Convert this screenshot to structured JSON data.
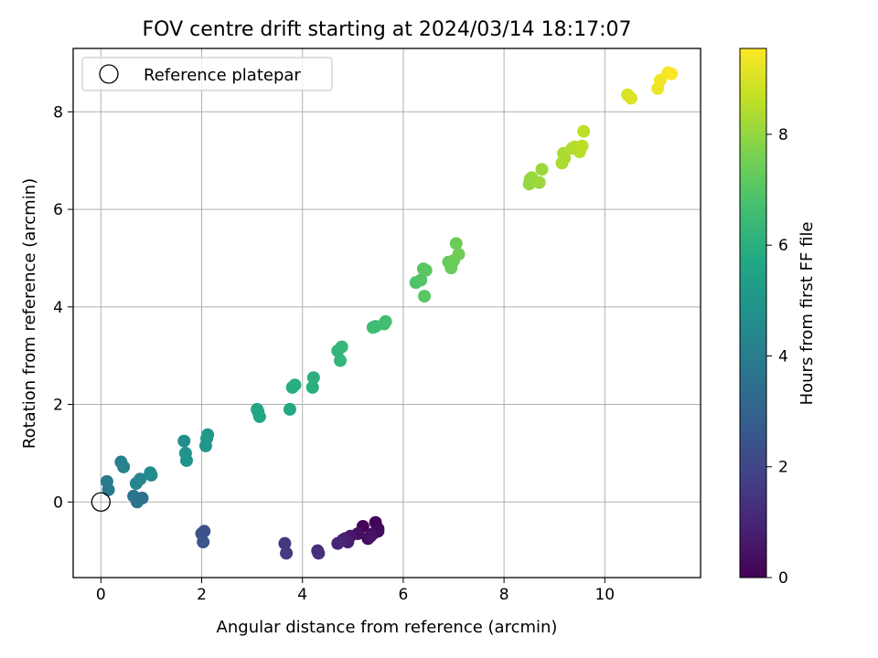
{
  "chart_data": {
    "type": "scatter",
    "title": "FOV centre drift starting at 2024/03/14 18:17:07",
    "xlabel": "Angular distance from reference (arcmin)",
    "ylabel": "Rotation from reference (arcmin)",
    "xlim": [
      -0.55,
      11.9
    ],
    "ylim": [
      -1.55,
      9.3
    ],
    "xticks": [
      0,
      2,
      4,
      6,
      8,
      10
    ],
    "yticks": [
      0,
      2,
      4,
      6,
      8
    ],
    "grid": true,
    "legend": {
      "placement": "top-left",
      "entries": [
        "Reference platepar"
      ]
    },
    "reference_point": {
      "x": 0,
      "y": 0,
      "marker": "open-circle",
      "label": "Reference platepar"
    },
    "colorbar": {
      "label": "Hours from first FF file",
      "colormap": "viridis",
      "range": [
        0,
        9.55
      ],
      "ticks": [
        0,
        2,
        4,
        6,
        8
      ]
    },
    "points": [
      {
        "x": 5.45,
        "y": -0.42,
        "h": 0.05
      },
      {
        "x": 5.5,
        "y": -0.55,
        "h": 0.1
      },
      {
        "x": 5.2,
        "y": -0.5,
        "h": 0.15
      },
      {
        "x": 5.4,
        "y": -0.65,
        "h": 0.2
      },
      {
        "x": 5.3,
        "y": -0.75,
        "h": 0.25
      },
      {
        "x": 5.5,
        "y": -0.6,
        "h": 0.3
      },
      {
        "x": 5.1,
        "y": -0.65,
        "h": 0.4
      },
      {
        "x": 5.35,
        "y": -0.7,
        "h": 0.5
      },
      {
        "x": 4.95,
        "y": -0.7,
        "h": 0.6
      },
      {
        "x": 4.85,
        "y": -0.75,
        "h": 0.7
      },
      {
        "x": 4.9,
        "y": -0.82,
        "h": 0.8
      },
      {
        "x": 4.8,
        "y": -0.78,
        "h": 0.9
      },
      {
        "x": 4.7,
        "y": -0.85,
        "h": 1.0
      },
      {
        "x": 4.3,
        "y": -1.0,
        "h": 1.2
      },
      {
        "x": 4.32,
        "y": -1.05,
        "h": 1.3
      },
      {
        "x": 3.65,
        "y": -0.85,
        "h": 1.5
      },
      {
        "x": 3.68,
        "y": -1.05,
        "h": 1.6
      },
      {
        "x": 2.0,
        "y": -0.65,
        "h": 2.3
      },
      {
        "x": 2.05,
        "y": -0.6,
        "h": 2.4
      },
      {
        "x": 2.03,
        "y": -0.82,
        "h": 2.5
      },
      {
        "x": 0.82,
        "y": 0.08,
        "h": 3.5
      },
      {
        "x": 0.72,
        "y": 0.0,
        "h": 3.6
      },
      {
        "x": 0.65,
        "y": 0.12,
        "h": 3.7
      },
      {
        "x": 0.15,
        "y": 0.25,
        "h": 3.9
      },
      {
        "x": 0.12,
        "y": 0.42,
        "h": 3.95
      },
      {
        "x": 0.4,
        "y": 0.82,
        "h": 4.1
      },
      {
        "x": 0.45,
        "y": 0.72,
        "h": 4.2
      },
      {
        "x": 0.7,
        "y": 0.38,
        "h": 4.3
      },
      {
        "x": 0.78,
        "y": 0.47,
        "h": 4.4
      },
      {
        "x": 0.98,
        "y": 0.6,
        "h": 4.5
      },
      {
        "x": 1.0,
        "y": 0.55,
        "h": 4.55
      },
      {
        "x": 1.65,
        "y": 1.25,
        "h": 4.7
      },
      {
        "x": 1.68,
        "y": 1.0,
        "h": 4.8
      },
      {
        "x": 1.7,
        "y": 0.85,
        "h": 4.9
      },
      {
        "x": 2.08,
        "y": 1.15,
        "h": 5.0
      },
      {
        "x": 2.1,
        "y": 1.3,
        "h": 5.05
      },
      {
        "x": 2.12,
        "y": 1.38,
        "h": 5.1
      },
      {
        "x": 3.1,
        "y": 1.9,
        "h": 5.6
      },
      {
        "x": 3.15,
        "y": 1.75,
        "h": 5.65
      },
      {
        "x": 3.12,
        "y": 1.85,
        "h": 5.7
      },
      {
        "x": 3.75,
        "y": 1.9,
        "h": 5.8
      },
      {
        "x": 3.8,
        "y": 2.35,
        "h": 5.9
      },
      {
        "x": 3.85,
        "y": 2.4,
        "h": 5.95
      },
      {
        "x": 4.2,
        "y": 2.35,
        "h": 6.0
      },
      {
        "x": 4.22,
        "y": 2.55,
        "h": 6.05
      },
      {
        "x": 4.7,
        "y": 3.1,
        "h": 6.2
      },
      {
        "x": 4.75,
        "y": 2.9,
        "h": 6.25
      },
      {
        "x": 4.78,
        "y": 3.18,
        "h": 6.3
      },
      {
        "x": 5.4,
        "y": 3.58,
        "h": 6.5
      },
      {
        "x": 5.45,
        "y": 3.6,
        "h": 6.55
      },
      {
        "x": 5.65,
        "y": 3.7,
        "h": 6.6
      },
      {
        "x": 5.62,
        "y": 3.65,
        "h": 6.62
      },
      {
        "x": 6.25,
        "y": 4.5,
        "h": 6.9
      },
      {
        "x": 6.35,
        "y": 4.55,
        "h": 6.95
      },
      {
        "x": 6.4,
        "y": 4.78,
        "h": 7.0
      },
      {
        "x": 6.42,
        "y": 4.22,
        "h": 7.05
      },
      {
        "x": 6.45,
        "y": 4.75,
        "h": 7.1
      },
      {
        "x": 6.9,
        "y": 4.92,
        "h": 7.3
      },
      {
        "x": 6.95,
        "y": 4.8,
        "h": 7.32
      },
      {
        "x": 7.0,
        "y": 4.95,
        "h": 7.35
      },
      {
        "x": 7.05,
        "y": 5.3,
        "h": 7.4
      },
      {
        "x": 7.1,
        "y": 5.08,
        "h": 7.45
      },
      {
        "x": 8.5,
        "y": 6.52,
        "h": 8.0
      },
      {
        "x": 8.52,
        "y": 6.62,
        "h": 8.02
      },
      {
        "x": 8.55,
        "y": 6.65,
        "h": 8.05
      },
      {
        "x": 8.7,
        "y": 6.55,
        "h": 8.1
      },
      {
        "x": 8.75,
        "y": 6.82,
        "h": 8.12
      },
      {
        "x": 9.15,
        "y": 6.95,
        "h": 8.3
      },
      {
        "x": 9.18,
        "y": 7.15,
        "h": 8.32
      },
      {
        "x": 9.2,
        "y": 7.05,
        "h": 8.34
      },
      {
        "x": 9.35,
        "y": 7.25,
        "h": 8.4
      },
      {
        "x": 9.4,
        "y": 7.28,
        "h": 8.45
      },
      {
        "x": 9.5,
        "y": 7.18,
        "h": 8.5
      },
      {
        "x": 9.55,
        "y": 7.3,
        "h": 8.55
      },
      {
        "x": 9.58,
        "y": 7.6,
        "h": 8.6
      },
      {
        "x": 10.45,
        "y": 8.35,
        "h": 9.0
      },
      {
        "x": 10.52,
        "y": 8.28,
        "h": 9.05
      },
      {
        "x": 11.05,
        "y": 8.48,
        "h": 9.3
      },
      {
        "x": 11.1,
        "y": 8.65,
        "h": 9.35
      },
      {
        "x": 11.25,
        "y": 8.8,
        "h": 9.45
      },
      {
        "x": 11.32,
        "y": 8.78,
        "h": 9.5
      }
    ]
  }
}
